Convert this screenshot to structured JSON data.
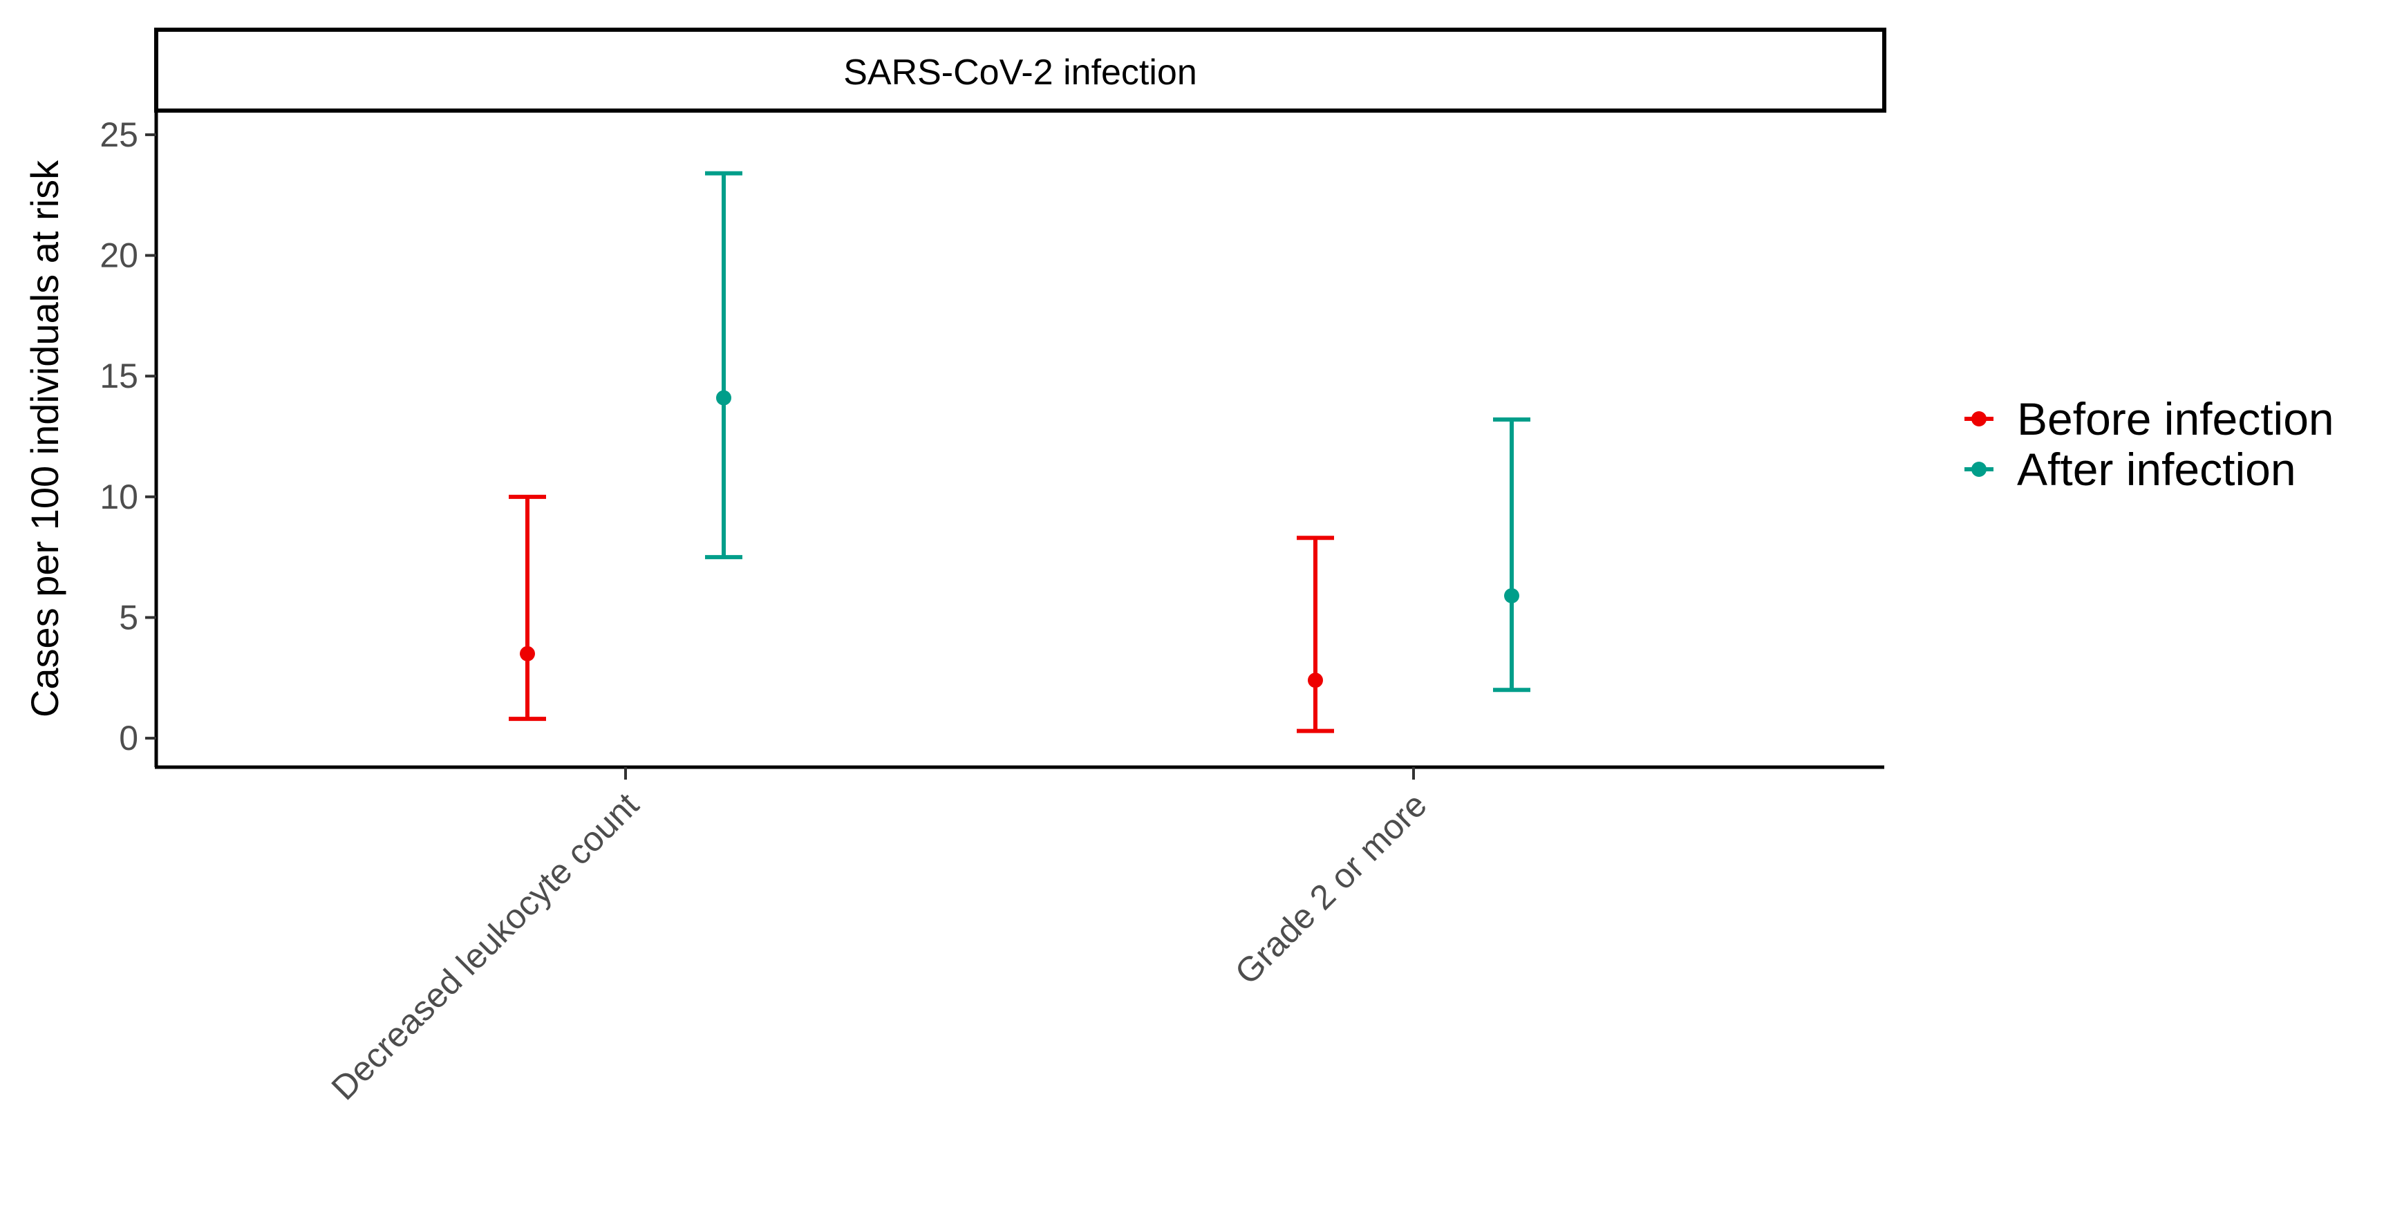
{
  "chart_data": {
    "type": "errorbar",
    "title": "",
    "facet_label": "SARS-CoV-2 infection",
    "xlabel": "",
    "ylabel": "Cases per 100 individuals at risk",
    "ylim": [
      -1.2,
      26
    ],
    "y_ticks": [
      0,
      5,
      10,
      15,
      20,
      25
    ],
    "categories": [
      "Decreased leukocyte count",
      "Grade 2 or more"
    ],
    "series": [
      {
        "name": "Before infection",
        "color": "#EE0000",
        "points": [
          {
            "category": "Decreased leukocyte count",
            "estimate": 3.5,
            "lower": 0.8,
            "upper": 10.0
          },
          {
            "category": "Grade 2 or more",
            "estimate": 2.4,
            "lower": 0.3,
            "upper": 8.3
          }
        ]
      },
      {
        "name": "After infection",
        "color": "#009E8A",
        "points": [
          {
            "category": "Decreased leukocyte count",
            "estimate": 14.1,
            "lower": 7.5,
            "upper": 23.4
          },
          {
            "category": "Grade 2 or more",
            "estimate": 5.9,
            "lower": 2.0,
            "upper": 13.2
          }
        ]
      }
    ],
    "legend_position": "right",
    "grid": false
  }
}
